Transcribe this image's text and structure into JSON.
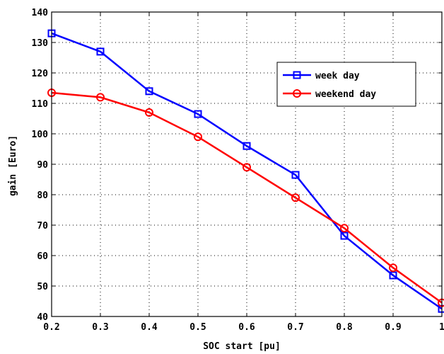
{
  "chart_data": {
    "type": "line",
    "xlabel": "SOC start [pu]",
    "ylabel": "gain [Euro]",
    "xlim": [
      0.2,
      1.0
    ],
    "ylim": [
      40,
      140
    ],
    "x_ticks": [
      0.2,
      0.3,
      0.4,
      0.5,
      0.6,
      0.7,
      0.8,
      0.9,
      1.0
    ],
    "x_tick_labels": [
      "0.2",
      "0.3",
      "0.4",
      "0.5",
      "0.6",
      "0.7",
      "0.8",
      "0.9",
      "1"
    ],
    "y_ticks": [
      40,
      50,
      60,
      70,
      80,
      90,
      100,
      110,
      120,
      130,
      140
    ],
    "y_tick_labels": [
      "40",
      "50",
      "60",
      "70",
      "80",
      "90",
      "100",
      "110",
      "120",
      "130",
      "140"
    ],
    "grid": true,
    "legend_position": "upper-right",
    "x": [
      0.2,
      0.3,
      0.4,
      0.5,
      0.6,
      0.7,
      0.8,
      0.9,
      1.0
    ],
    "series": [
      {
        "name": "week day",
        "color": "#0000ff",
        "marker": "square",
        "values": [
          133,
          127,
          114,
          106.5,
          96,
          86.5,
          66.5,
          53.5,
          42.5
        ]
      },
      {
        "name": "weekend day",
        "color": "#ff0000",
        "marker": "circle",
        "values": [
          113.5,
          112,
          107,
          99,
          89,
          79,
          69,
          56,
          44.5
        ]
      }
    ]
  }
}
